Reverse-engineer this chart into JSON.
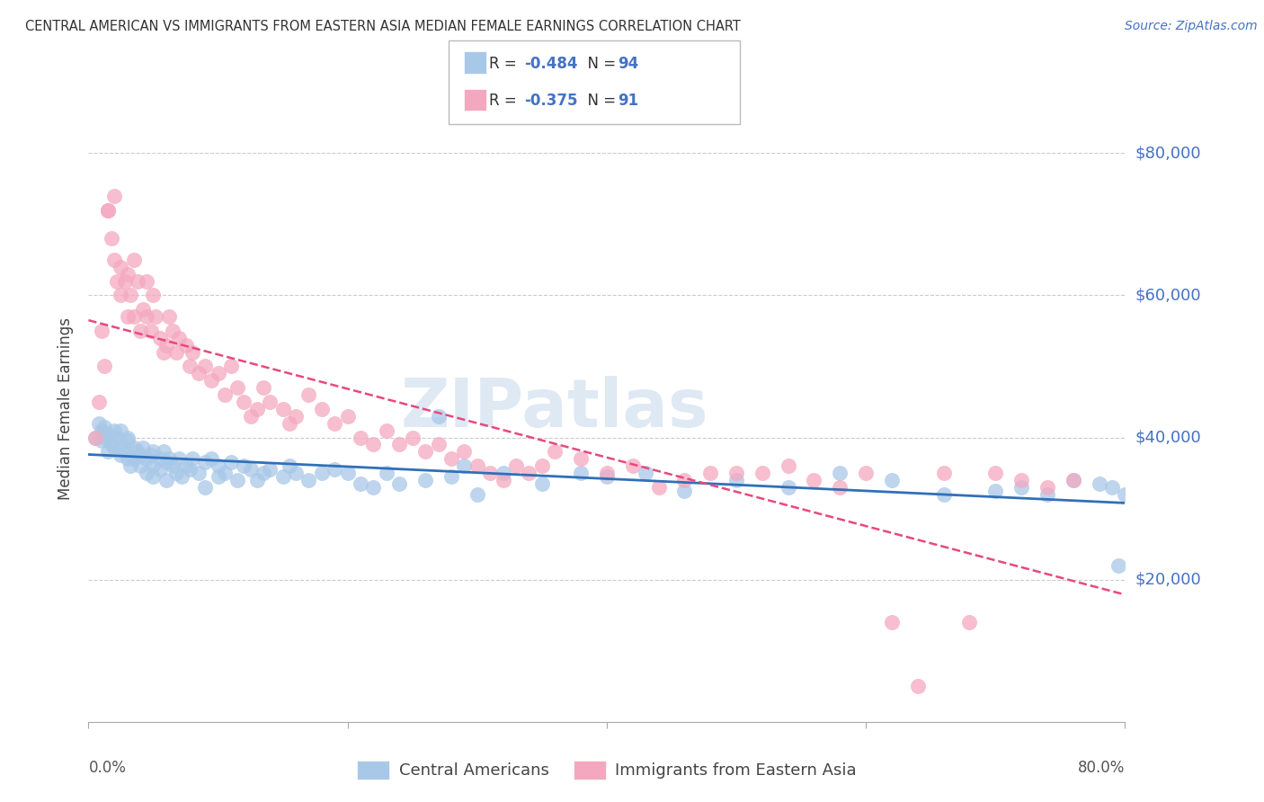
{
  "title": "CENTRAL AMERICAN VS IMMIGRANTS FROM EASTERN ASIA MEDIAN FEMALE EARNINGS CORRELATION CHART",
  "source": "Source: ZipAtlas.com",
  "ylabel": "Median Female Earnings",
  "y_ticks": [
    20000,
    40000,
    60000,
    80000
  ],
  "y_tick_labels": [
    "$20,000",
    "$40,000",
    "$60,000",
    "$80,000"
  ],
  "x_min": 0.0,
  "x_max": 0.8,
  "y_min": 0,
  "y_max": 88000,
  "blue_R": "-0.484",
  "blue_N": "94",
  "pink_R": "-0.375",
  "pink_N": "91",
  "blue_color": "#a8c8e8",
  "pink_color": "#f4a8c0",
  "blue_line_color": "#3070b8",
  "pink_line_color": "#e84880",
  "watermark": "ZIPatlas",
  "legend_label_blue": "Central Americans",
  "legend_label_pink": "Immigrants from Eastern Asia",
  "blue_scatter_x": [
    0.005,
    0.008,
    0.01,
    0.01,
    0.012,
    0.013,
    0.015,
    0.015,
    0.018,
    0.02,
    0.02,
    0.022,
    0.025,
    0.025,
    0.025,
    0.028,
    0.03,
    0.03,
    0.03,
    0.032,
    0.035,
    0.035,
    0.038,
    0.04,
    0.04,
    0.042,
    0.045,
    0.045,
    0.048,
    0.05,
    0.05,
    0.05,
    0.055,
    0.055,
    0.058,
    0.06,
    0.06,
    0.062,
    0.065,
    0.068,
    0.07,
    0.072,
    0.075,
    0.078,
    0.08,
    0.085,
    0.09,
    0.09,
    0.095,
    0.1,
    0.1,
    0.105,
    0.11,
    0.115,
    0.12,
    0.125,
    0.13,
    0.135,
    0.14,
    0.15,
    0.155,
    0.16,
    0.17,
    0.18,
    0.19,
    0.2,
    0.21,
    0.22,
    0.23,
    0.24,
    0.26,
    0.27,
    0.28,
    0.29,
    0.3,
    0.32,
    0.35,
    0.38,
    0.4,
    0.43,
    0.46,
    0.5,
    0.54,
    0.58,
    0.62,
    0.66,
    0.7,
    0.72,
    0.74,
    0.76,
    0.78,
    0.79,
    0.795,
    0.8
  ],
  "blue_scatter_y": [
    40000,
    42000,
    41000,
    39500,
    41500,
    40000,
    38000,
    40500,
    39000,
    41000,
    38500,
    40000,
    39000,
    37500,
    41000,
    38000,
    40000,
    37000,
    39500,
    36000,
    38500,
    37000,
    38000,
    37500,
    36000,
    38500,
    37000,
    35000,
    37500,
    36000,
    38000,
    34500,
    37000,
    35500,
    38000,
    36500,
    34000,
    37000,
    36000,
    35000,
    37000,
    34500,
    36000,
    35500,
    37000,
    35000,
    36500,
    33000,
    37000,
    36000,
    34500,
    35000,
    36500,
    34000,
    36000,
    35500,
    34000,
    35000,
    35500,
    34500,
    36000,
    35000,
    34000,
    35000,
    35500,
    35000,
    33500,
    33000,
    35000,
    33500,
    34000,
    43000,
    34500,
    36000,
    32000,
    35000,
    33500,
    35000,
    34500,
    35000,
    32500,
    34000,
    33000,
    35000,
    34000,
    32000,
    32500,
    33000,
    32000,
    34000,
    33500,
    33000,
    22000,
    32000
  ],
  "pink_scatter_x": [
    0.005,
    0.008,
    0.01,
    0.012,
    0.015,
    0.015,
    0.018,
    0.02,
    0.02,
    0.022,
    0.025,
    0.025,
    0.028,
    0.03,
    0.03,
    0.032,
    0.035,
    0.035,
    0.038,
    0.04,
    0.042,
    0.045,
    0.045,
    0.048,
    0.05,
    0.052,
    0.055,
    0.058,
    0.06,
    0.062,
    0.065,
    0.068,
    0.07,
    0.075,
    0.078,
    0.08,
    0.085,
    0.09,
    0.095,
    0.1,
    0.105,
    0.11,
    0.115,
    0.12,
    0.125,
    0.13,
    0.135,
    0.14,
    0.15,
    0.155,
    0.16,
    0.17,
    0.18,
    0.19,
    0.2,
    0.21,
    0.22,
    0.23,
    0.24,
    0.25,
    0.26,
    0.27,
    0.28,
    0.29,
    0.3,
    0.31,
    0.32,
    0.33,
    0.34,
    0.35,
    0.36,
    0.38,
    0.4,
    0.42,
    0.44,
    0.46,
    0.48,
    0.5,
    0.52,
    0.54,
    0.56,
    0.58,
    0.6,
    0.62,
    0.64,
    0.66,
    0.68,
    0.7,
    0.72,
    0.74,
    0.76
  ],
  "pink_scatter_y": [
    40000,
    45000,
    55000,
    50000,
    72000,
    72000,
    68000,
    65000,
    74000,
    62000,
    60000,
    64000,
    62000,
    57000,
    63000,
    60000,
    57000,
    65000,
    62000,
    55000,
    58000,
    62000,
    57000,
    55000,
    60000,
    57000,
    54000,
    52000,
    53000,
    57000,
    55000,
    52000,
    54000,
    53000,
    50000,
    52000,
    49000,
    50000,
    48000,
    49000,
    46000,
    50000,
    47000,
    45000,
    43000,
    44000,
    47000,
    45000,
    44000,
    42000,
    43000,
    46000,
    44000,
    42000,
    43000,
    40000,
    39000,
    41000,
    39000,
    40000,
    38000,
    39000,
    37000,
    38000,
    36000,
    35000,
    34000,
    36000,
    35000,
    36000,
    38000,
    37000,
    35000,
    36000,
    33000,
    34000,
    35000,
    35000,
    35000,
    36000,
    34000,
    33000,
    35000,
    14000,
    5000,
    35000,
    14000,
    35000,
    34000,
    33000,
    34000
  ]
}
